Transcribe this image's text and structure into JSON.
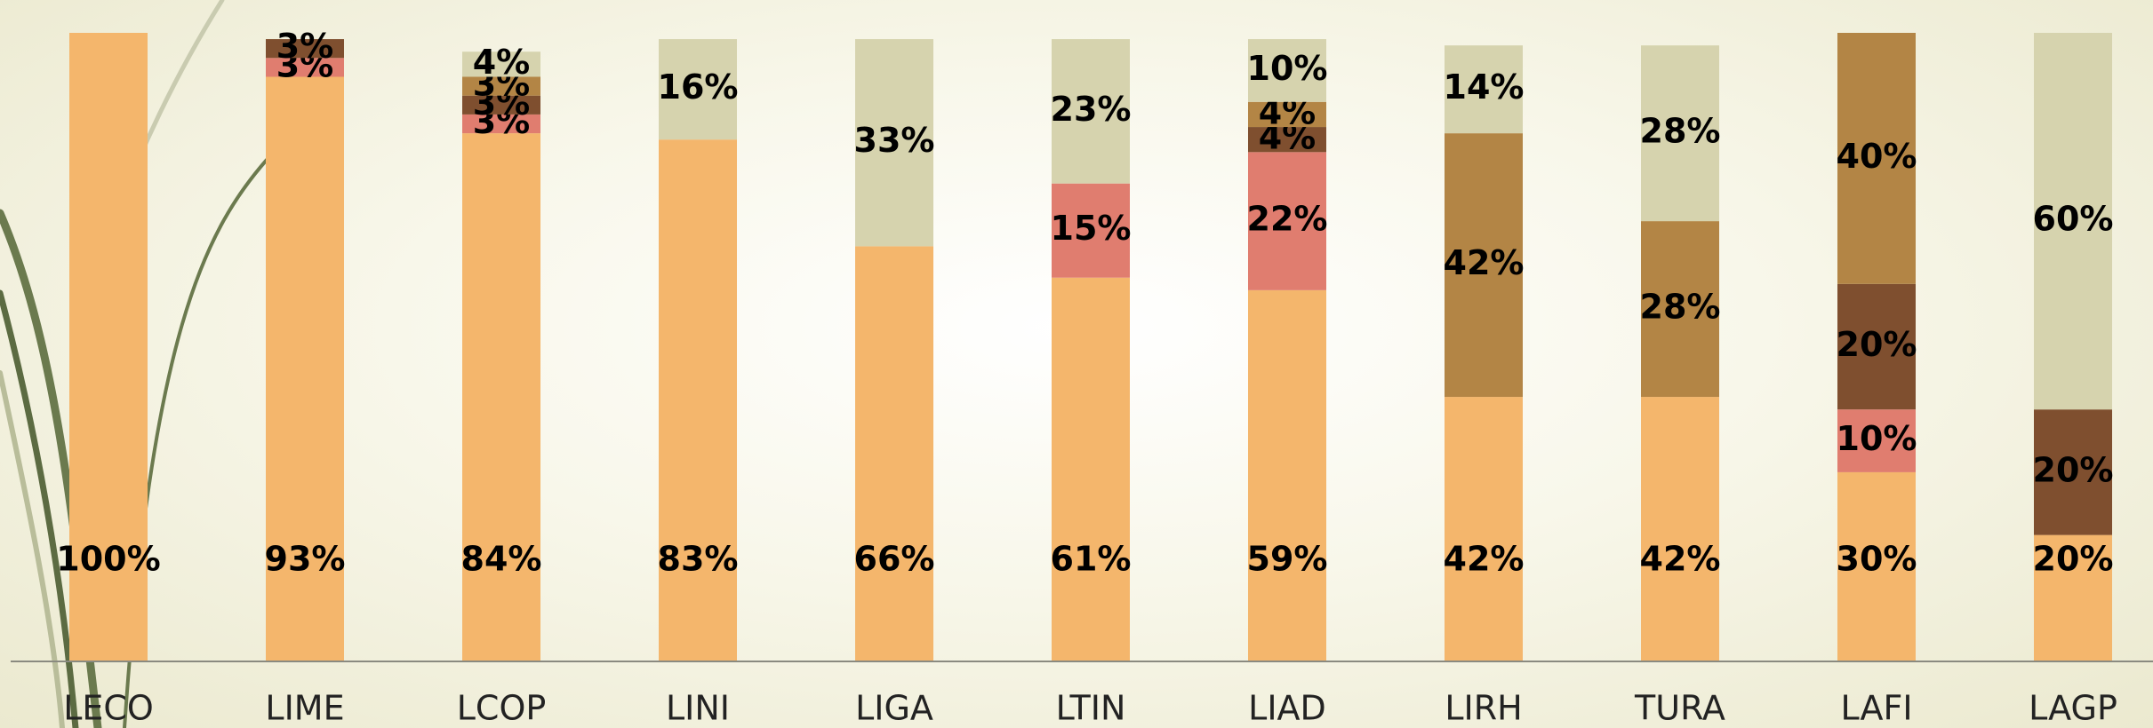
{
  "chart_data": {
    "type": "stacked_bar",
    "categories": [
      "LECO",
      "LIME",
      "LCOP",
      "LINI",
      "LIGA",
      "LTIN",
      "LIAD",
      "LIRH",
      "TURA",
      "LAFI",
      "LAGP"
    ],
    "ylim": [
      0,
      100
    ],
    "series": [
      {
        "color": "#f4b66c",
        "values": [
          100,
          93,
          84,
          83,
          66,
          61,
          59,
          42,
          42,
          30,
          20
        ],
        "value_labels": [
          "100%",
          "93%",
          "84%",
          "83%",
          "66%",
          "61%",
          "59%",
          "42%",
          "42%",
          "30%",
          "20%"
        ]
      },
      {
        "color": "#e07d6f",
        "values": [
          null,
          3,
          3,
          null,
          null,
          15,
          22,
          null,
          null,
          10,
          null
        ],
        "value_labels": [
          null,
          "3%",
          "3%",
          null,
          null,
          "15%",
          "22%",
          null,
          null,
          "10%",
          null
        ]
      },
      {
        "color": "#7f4f2f",
        "values": [
          null,
          3,
          3,
          null,
          null,
          null,
          4,
          null,
          null,
          20,
          20
        ],
        "value_labels": [
          null,
          "3%",
          "3%",
          null,
          null,
          null,
          "4%",
          null,
          null,
          "20%",
          "20%"
        ]
      },
      {
        "color": "#b38545",
        "values": [
          null,
          null,
          3,
          null,
          null,
          null,
          4,
          42,
          28,
          40,
          null
        ],
        "value_labels": [
          null,
          null,
          "3%",
          null,
          null,
          null,
          "4%",
          "42%",
          "28%",
          "40%",
          null
        ]
      },
      {
        "color": "#d6d3ae",
        "values": [
          null,
          null,
          4,
          16,
          33,
          23,
          10,
          14,
          28,
          null,
          60
        ],
        "value_labels": [
          null,
          null,
          "4%",
          "16%",
          "33%",
          "23%",
          "10%",
          "14%",
          "28%",
          null,
          "60%"
        ]
      }
    ]
  }
}
